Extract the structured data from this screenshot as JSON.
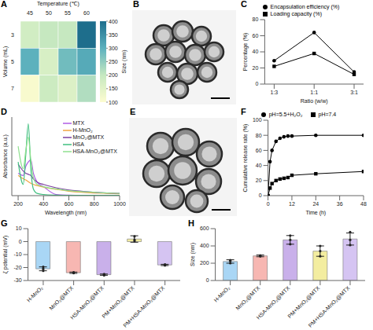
{
  "chart_data": [
    {
      "label": "A",
      "type": "heatmap",
      "x_label": "Temperature (℃)",
      "y_label": "Volume (mL)",
      "x": [
        45,
        50,
        55,
        60
      ],
      "y": [
        3,
        5,
        7
      ],
      "values": [
        [
          180,
          200,
          200,
          400
        ],
        [
          300,
          170,
          280,
          310
        ],
        [
          110,
          190,
          160,
          220
        ]
      ],
      "colorbar": {
        "label": "Size (nm)",
        "lim": [
          100,
          400
        ],
        "ticks": [
          100,
          150,
          200,
          250,
          300,
          350,
          400
        ]
      }
    },
    {
      "label": "B",
      "type": "image"
    },
    {
      "label": "C",
      "type": "line",
      "x_label": "Ratio (w/w)",
      "y_label": "Percentage (%)",
      "categories": [
        "1:3",
        "1:1",
        "3:1"
      ],
      "ylim": [
        0,
        80
      ],
      "yticks": [
        0,
        20,
        40,
        60,
        80
      ],
      "legend": "top",
      "series": [
        {
          "name": "Encapsulation efficiency (%)",
          "color": "#000000",
          "marker": "circle",
          "values": [
            29,
            64,
            15
          ]
        },
        {
          "name": "Loading capacity (%)",
          "color": "#000000",
          "marker": "square",
          "values": [
            22,
            38,
            12
          ]
        }
      ]
    },
    {
      "label": "D",
      "type": "line",
      "x_label": "Wavelength (nm)",
      "y_label": "Absorbance (a.u.)",
      "x": [
        200,
        240,
        260,
        280,
        300,
        320,
        350,
        400,
        500,
        600,
        700,
        800,
        900,
        1000
      ],
      "xlim": [
        150,
        1000
      ],
      "xticks": [
        200,
        400,
        600,
        800,
        1000
      ],
      "ylim": [
        0,
        3.5
      ],
      "tick_labels": "x",
      "legend": "top right",
      "series": [
        {
          "name": "MTX",
          "color": "#b05ce6",
          "values": [
            1.0,
            0.9,
            1.3,
            1.5,
            1.6,
            1.0,
            0.6,
            0.4,
            0.05,
            0.02,
            0.01,
            0.01,
            0.01,
            0.01
          ]
        },
        {
          "name": "H-MnO₂",
          "color": "#f2a541",
          "values": [
            0.9,
            0.75,
            0.7,
            0.62,
            0.55,
            0.5,
            0.45,
            0.38,
            0.28,
            0.2,
            0.15,
            0.12,
            0.1,
            0.08
          ]
        },
        {
          "name": "MnO₂@MTX",
          "color": "#7b3fa0",
          "values": [
            1.4,
            1.1,
            1.0,
            0.95,
            0.9,
            0.75,
            0.6,
            0.5,
            0.35,
            0.25,
            0.2,
            0.15,
            0.12,
            0.1
          ]
        },
        {
          "name": "HSA",
          "color": "#3fbf7f",
          "values": [
            1.5,
            0.5,
            1.8,
            3.2,
            1.2,
            0.3,
            0.1,
            0.05,
            0.02,
            0.01,
            0.01,
            0.01,
            0.01,
            0.01
          ]
        },
        {
          "name": "HSA-MnO₂@MTX",
          "color": "#8fe08f",
          "values": [
            2.2,
            1.2,
            2.0,
            2.6,
            1.6,
            0.8,
            0.5,
            0.4,
            0.3,
            0.22,
            0.18,
            0.15,
            0.12,
            0.1
          ]
        }
      ]
    },
    {
      "label": "E",
      "type": "image"
    },
    {
      "label": "F",
      "type": "line",
      "x_label": "Time (h)",
      "y_label": "Cumulative release rate (%)",
      "x": [
        0,
        1,
        2,
        4,
        6,
        8,
        10,
        12,
        24,
        48
      ],
      "xlim": [
        0,
        48
      ],
      "xticks": [
        0,
        12,
        24,
        36,
        48
      ],
      "ylim": [
        0,
        100
      ],
      "yticks": [
        0,
        20,
        40,
        60,
        80,
        100
      ],
      "legend": "top",
      "series": [
        {
          "name": "pH=5.5+H₂O₂",
          "color": "#000000",
          "marker": "circle",
          "values": [
            0,
            45,
            60,
            72,
            76,
            78,
            79,
            79,
            80,
            80
          ]
        },
        {
          "name": "pH=7.4",
          "color": "#000000",
          "marker": "square",
          "values": [
            0,
            10,
            16,
            20,
            22,
            23,
            24,
            27,
            29,
            32
          ]
        }
      ]
    },
    {
      "label": "G",
      "type": "bar",
      "y_label": "ζ potential (mV)",
      "categories": [
        "H-MnO₂",
        "MnO₂@MTX",
        "HSA-MnO₂@MTX",
        "PM+MnO₂@MTX",
        "PM+HSA-MnO₂@MTX"
      ],
      "values": [
        -21,
        -24,
        -25.5,
        2,
        -18
      ],
      "errors": [
        1.5,
        0.5,
        0.5,
        2.5,
        0.5
      ],
      "points": [
        [
          -22.5,
          -19.5,
          -21
        ],
        [
          -24.3,
          -23.7,
          -24
        ],
        [
          -26,
          -25,
          -25.5
        ],
        [
          4,
          0.5,
          1.5
        ],
        [
          -18.4,
          -17.6,
          -18
        ]
      ],
      "colors": [
        "#a9d6f5",
        "#f7b7b2",
        "#c9b0ea",
        "#f3eda0",
        "#d5c4f2"
      ],
      "ylim": [
        -30,
        10
      ],
      "yticks": [
        -30,
        -20,
        -10,
        0,
        10
      ]
    },
    {
      "label": "H",
      "type": "bar",
      "y_label": "Size (nm)",
      "categories": [
        "H-MnO₂",
        "MnO₂@MTX",
        "HSA-MnO₂@MTX",
        "PM+MnO₂@MTX",
        "PM+HSA-MnO₂@MTX"
      ],
      "values": [
        220,
        285,
        470,
        340,
        480
      ],
      "errors": [
        20,
        10,
        50,
        60,
        70
      ],
      "points": [
        [
          200,
          225,
          235
        ],
        [
          280,
          285,
          290
        ],
        [
          420,
          520,
          470
        ],
        [
          280,
          400,
          340
        ],
        [
          410,
          560,
          470
        ]
      ],
      "colors": [
        "#a9d6f5",
        "#f7b7b2",
        "#c9b0ea",
        "#f3eda0",
        "#d5c4f2"
      ],
      "ylim": [
        0,
        600
      ],
      "yticks": [
        0,
        200,
        400,
        600
      ]
    }
  ]
}
